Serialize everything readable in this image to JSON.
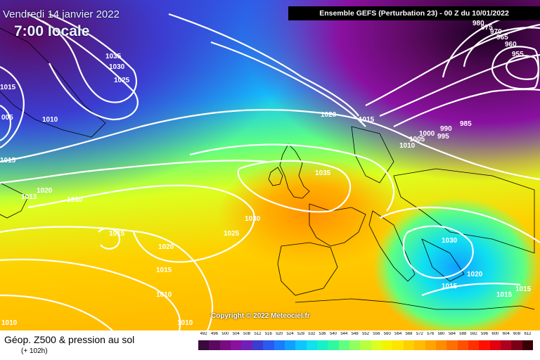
{
  "header": {
    "date": "Vendredi 14 janvier 2022",
    "time": "7:00 locale",
    "model_info": "Ensemble GEFS  (Perturbation 23)  -  00 Z du 10/01/2022"
  },
  "copyright": "Copyright © 2022 Meteociel.fr",
  "footer": {
    "title": "Géop. Z500 & pression au sol",
    "subtitle": "(+ 102h)"
  },
  "legend": {
    "values": [
      "492",
      "496",
      "500",
      "504",
      "508",
      "512",
      "516",
      "520",
      "524",
      "528",
      "532",
      "536",
      "540",
      "544",
      "548",
      "552",
      "556",
      "560",
      "564",
      "568",
      "572",
      "576",
      "580",
      "584",
      "588",
      "592",
      "596",
      "600",
      "604",
      "608",
      "612"
    ],
    "colors": [
      "#3a0a3e",
      "#5a0a5e",
      "#780c80",
      "#8a10a0",
      "#7020b8",
      "#3c3cd0",
      "#2a5af0",
      "#1a7cff",
      "#10a0ff",
      "#10c4ff",
      "#10e0f0",
      "#18f0c8",
      "#30f8a0",
      "#60ff80",
      "#90ff60",
      "#b8ff40",
      "#dcff20",
      "#f4f400",
      "#ffe400",
      "#ffd000",
      "#ffbc00",
      "#ffa400",
      "#ff8c00",
      "#ff7000",
      "#ff5000",
      "#ff3000",
      "#ff1000",
      "#e00010",
      "#b00020",
      "#7a0018",
      "#3a0008"
    ]
  },
  "isobar_labels": [
    "1035",
    "1030",
    "1025",
    "1015",
    "005",
    "1010",
    "1015",
    "1020",
    "1013",
    "1030",
    "1015",
    "1020",
    "1025",
    "1030",
    "1015",
    "1010",
    "1010",
    "1010",
    "1020",
    "1015",
    "1035",
    "1010",
    "1005",
    "1000",
    "990",
    "995",
    "985",
    "980",
    "975",
    "970",
    "965",
    "960",
    "955",
    "1030",
    "1020",
    "1015",
    "1015",
    "1015"
  ],
  "palette": {
    "map_background": "#1a7cff",
    "isobar": "#ffffff",
    "coastline": "#000000",
    "header_bg": "#000000"
  }
}
